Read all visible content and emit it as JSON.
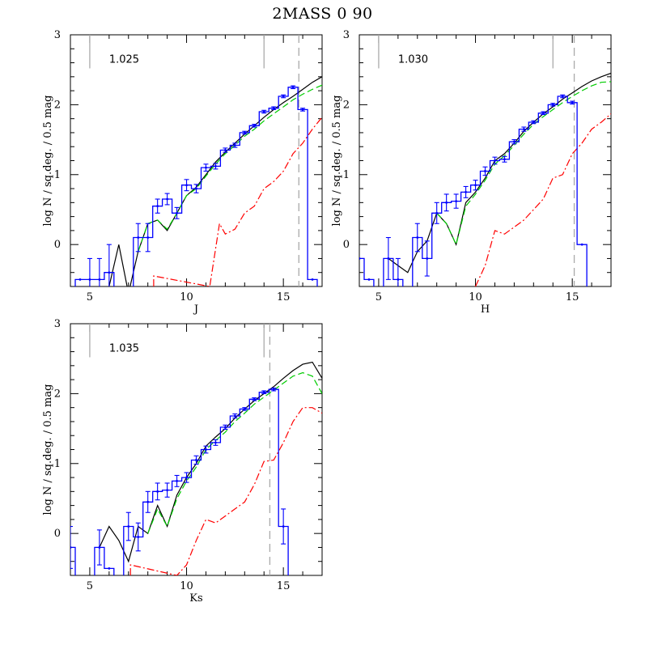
{
  "figure_title": "2MASS 0 90",
  "colors": {
    "observed": "#0000ff",
    "model_total": "#000000",
    "model_green": "#00cc00",
    "model_red": "#ff0000",
    "guides": "#aaaaaa"
  },
  "chart_data": [
    {
      "type": "line",
      "panel": "J",
      "xlabel": "J",
      "ylabel": "log N / sq.deg. / 0.5 mag",
      "annotation": "1.025",
      "xlim": [
        4,
        17
      ],
      "ylim": [
        -0.6,
        3
      ],
      "xticks": [
        5,
        10,
        15
      ],
      "yticks": [
        0,
        1,
        2,
        3
      ],
      "vertical_markers": {
        "solid": [
          5,
          14
        ],
        "dashed": [
          15.8
        ]
      },
      "observed_histogram": {
        "bin_width": 0.5,
        "bins": [
          {
            "x": 4.5,
            "y": -0.5,
            "err": 0
          },
          {
            "x": 5.0,
            "y": -0.5,
            "err": 0.3
          },
          {
            "x": 5.5,
            "y": -0.5,
            "err": 0.3
          },
          {
            "x": 6.0,
            "y": -0.4,
            "err": 0.4
          },
          {
            "x": 7.5,
            "y": 0.1,
            "err": 0.2
          },
          {
            "x": 8.0,
            "y": 0.1,
            "err": 0.2
          },
          {
            "x": 8.5,
            "y": 0.55,
            "err": 0.1
          },
          {
            "x": 9.0,
            "y": 0.65,
            "err": 0.08
          },
          {
            "x": 9.5,
            "y": 0.45,
            "err": 0.08
          },
          {
            "x": 10.0,
            "y": 0.85,
            "err": 0.08
          },
          {
            "x": 10.5,
            "y": 0.8,
            "err": 0.06
          },
          {
            "x": 11.0,
            "y": 1.1,
            "err": 0.05
          },
          {
            "x": 11.5,
            "y": 1.12,
            "err": 0.04
          },
          {
            "x": 12.0,
            "y": 1.35,
            "err": 0.03
          },
          {
            "x": 12.5,
            "y": 1.42,
            "err": 0.03
          },
          {
            "x": 13.0,
            "y": 1.6,
            "err": 0.02
          },
          {
            "x": 13.5,
            "y": 1.7,
            "err": 0.02
          },
          {
            "x": 14.0,
            "y": 1.9,
            "err": 0.02
          },
          {
            "x": 14.5,
            "y": 1.95,
            "err": 0.02
          },
          {
            "x": 15.0,
            "y": 2.12,
            "err": 0.02
          },
          {
            "x": 15.5,
            "y": 2.25,
            "err": 0.02
          },
          {
            "x": 16.0,
            "y": 1.93,
            "err": 0.02
          },
          {
            "x": 16.5,
            "y": -0.5,
            "err": 0
          }
        ]
      },
      "series": [
        {
          "role": "total",
          "x": [
            5.5,
            6.0,
            6.5,
            7.0,
            7.5,
            8.0,
            8.5,
            9.0,
            9.5,
            10.0,
            10.5,
            11.0,
            11.5,
            12.0,
            12.5,
            13.0,
            13.5,
            14.0,
            14.5,
            15.0,
            15.5,
            16.0,
            16.5,
            17.0
          ],
          "y": [
            -0.7,
            -0.6,
            0.0,
            -0.7,
            -0.1,
            0.3,
            0.35,
            0.2,
            0.45,
            0.7,
            0.82,
            1.0,
            1.18,
            1.32,
            1.45,
            1.58,
            1.7,
            1.82,
            1.93,
            2.03,
            2.12,
            2.22,
            2.32,
            2.4
          ]
        },
        {
          "role": "green",
          "x": [
            7.5,
            8.0,
            8.5,
            9.0,
            9.5,
            10.0,
            10.5,
            11.0,
            11.5,
            12.0,
            12.5,
            13.0,
            13.5,
            14.0,
            14.5,
            15.0,
            15.5,
            16.0,
            16.5,
            17.0
          ],
          "y": [
            -0.1,
            0.3,
            0.35,
            0.22,
            0.45,
            0.7,
            0.8,
            0.98,
            1.15,
            1.3,
            1.42,
            1.55,
            1.65,
            1.77,
            1.87,
            1.97,
            2.07,
            2.15,
            2.22,
            2.28
          ]
        },
        {
          "role": "red",
          "x": [
            8.3,
            8.3,
            11.2,
            11.7,
            12.0,
            12.5,
            13.0,
            13.5,
            14.0,
            14.5,
            15.0,
            15.5,
            16.0,
            16.5,
            17.0
          ],
          "y": [
            -0.6,
            -0.45,
            -0.6,
            0.3,
            0.15,
            0.22,
            0.45,
            0.55,
            0.8,
            0.9,
            1.05,
            1.3,
            1.45,
            1.65,
            1.82
          ]
        }
      ]
    },
    {
      "type": "line",
      "panel": "H",
      "xlabel": "H",
      "ylabel": "log N / sq.deg. / 0.5 mag",
      "annotation": "1.030",
      "xlim": [
        4,
        17
      ],
      "ylim": [
        -0.6,
        3
      ],
      "xticks": [
        5,
        10,
        15
      ],
      "yticks": [
        0,
        1,
        2,
        3
      ],
      "vertical_markers": {
        "solid": [
          5,
          14
        ],
        "dashed": [
          15.1
        ]
      },
      "observed_histogram": {
        "bin_width": 0.5,
        "bins": [
          {
            "x": 4.0,
            "y": -0.2,
            "err": 0
          },
          {
            "x": 4.5,
            "y": -0.5,
            "err": 0
          },
          {
            "x": 5.5,
            "y": -0.2,
            "err": 0.3
          },
          {
            "x": 6.0,
            "y": -0.5,
            "err": 0.3
          },
          {
            "x": 7.0,
            "y": 0.1,
            "err": 0.2
          },
          {
            "x": 7.5,
            "y": -0.2,
            "err": 0.25
          },
          {
            "x": 8.0,
            "y": 0.45,
            "err": 0.15
          },
          {
            "x": 8.5,
            "y": 0.6,
            "err": 0.12
          },
          {
            "x": 9.0,
            "y": 0.62,
            "err": 0.1
          },
          {
            "x": 9.5,
            "y": 0.75,
            "err": 0.08
          },
          {
            "x": 10.0,
            "y": 0.85,
            "err": 0.07
          },
          {
            "x": 10.5,
            "y": 1.05,
            "err": 0.06
          },
          {
            "x": 11.0,
            "y": 1.2,
            "err": 0.05
          },
          {
            "x": 11.5,
            "y": 1.22,
            "err": 0.04
          },
          {
            "x": 12.0,
            "y": 1.47,
            "err": 0.03
          },
          {
            "x": 12.5,
            "y": 1.65,
            "err": 0.03
          },
          {
            "x": 13.0,
            "y": 1.75,
            "err": 0.02
          },
          {
            "x": 13.5,
            "y": 1.88,
            "err": 0.02
          },
          {
            "x": 14.0,
            "y": 2.0,
            "err": 0.02
          },
          {
            "x": 14.5,
            "y": 2.12,
            "err": 0.02
          },
          {
            "x": 15.0,
            "y": 2.03,
            "err": 0.02
          },
          {
            "x": 15.5,
            "y": 0.0,
            "err": 0
          }
        ]
      },
      "series": [
        {
          "role": "total",
          "x": [
            5.5,
            6.0,
            6.5,
            7.0,
            7.5,
            8.0,
            8.5,
            9.0,
            9.5,
            10.0,
            10.5,
            11.0,
            11.5,
            12.0,
            12.5,
            13.0,
            13.5,
            14.0,
            14.5,
            15.0,
            15.5,
            16.0,
            16.5,
            17.0
          ],
          "y": [
            -0.2,
            -0.3,
            -0.4,
            -0.1,
            0.05,
            0.45,
            0.3,
            0.0,
            0.6,
            0.75,
            0.95,
            1.2,
            1.3,
            1.45,
            1.62,
            1.75,
            1.87,
            1.97,
            2.08,
            2.17,
            2.26,
            2.34,
            2.4,
            2.45
          ]
        },
        {
          "role": "green",
          "x": [
            8.0,
            8.5,
            9.0,
            9.5,
            10.0,
            10.5,
            11.0,
            11.5,
            12.0,
            12.5,
            13.0,
            13.5,
            14.0,
            14.5,
            15.0,
            15.5,
            16.0,
            16.5,
            17.0
          ],
          "y": [
            0.45,
            0.3,
            0.0,
            0.55,
            0.72,
            0.92,
            1.15,
            1.27,
            1.42,
            1.58,
            1.72,
            1.83,
            1.93,
            2.03,
            2.12,
            2.2,
            2.27,
            2.32,
            2.33
          ]
        },
        {
          "role": "red",
          "x": [
            10.0,
            10.5,
            11.0,
            11.5,
            12.0,
            12.5,
            13.0,
            13.5,
            14.0,
            14.5,
            15.0,
            15.5,
            16.0,
            16.5,
            17.0
          ],
          "y": [
            -0.6,
            -0.3,
            0.2,
            0.15,
            0.25,
            0.35,
            0.5,
            0.65,
            0.95,
            1.0,
            1.3,
            1.45,
            1.65,
            1.75,
            1.87
          ]
        }
      ]
    },
    {
      "type": "line",
      "panel": "Ks",
      "xlabel": "Ks",
      "ylabel": "log N / sq.deg. / 0.5 mag",
      "annotation": "1.035",
      "xlim": [
        4,
        17
      ],
      "ylim": [
        -0.6,
        3
      ],
      "xticks": [
        5,
        10,
        15
      ],
      "yticks": [
        0,
        1,
        2,
        3
      ],
      "vertical_markers": {
        "solid": [
          5,
          14
        ],
        "dashed": [
          14.3
        ]
      },
      "observed_histogram": {
        "bin_width": 0.5,
        "bins": [
          {
            "x": 4.0,
            "y": -0.2,
            "err": 0.3
          },
          {
            "x": 5.5,
            "y": -0.2,
            "err": 0.25
          },
          {
            "x": 6.0,
            "y": -0.5,
            "err": 0
          },
          {
            "x": 7.0,
            "y": 0.1,
            "err": 0.2
          },
          {
            "x": 7.5,
            "y": -0.05,
            "err": 0.2
          },
          {
            "x": 8.0,
            "y": 0.45,
            "err": 0.15
          },
          {
            "x": 8.5,
            "y": 0.6,
            "err": 0.12
          },
          {
            "x": 9.0,
            "y": 0.62,
            "err": 0.1
          },
          {
            "x": 9.5,
            "y": 0.75,
            "err": 0.08
          },
          {
            "x": 10.0,
            "y": 0.8,
            "err": 0.07
          },
          {
            "x": 10.5,
            "y": 1.05,
            "err": 0.06
          },
          {
            "x": 11.0,
            "y": 1.2,
            "err": 0.05
          },
          {
            "x": 11.5,
            "y": 1.3,
            "err": 0.04
          },
          {
            "x": 12.0,
            "y": 1.52,
            "err": 0.03
          },
          {
            "x": 12.5,
            "y": 1.68,
            "err": 0.03
          },
          {
            "x": 13.0,
            "y": 1.78,
            "err": 0.02
          },
          {
            "x": 13.5,
            "y": 1.92,
            "err": 0.02
          },
          {
            "x": 14.0,
            "y": 2.02,
            "err": 0.02
          },
          {
            "x": 14.5,
            "y": 2.06,
            "err": 0.02
          },
          {
            "x": 15.0,
            "y": 0.1,
            "err": 0.25
          }
        ]
      },
      "series": [
        {
          "role": "total",
          "x": [
            5.5,
            6.0,
            6.5,
            7.0,
            7.5,
            8.0,
            8.5,
            9.0,
            9.5,
            10.0,
            10.5,
            11.0,
            11.5,
            12.0,
            12.5,
            13.0,
            13.5,
            14.0,
            14.5,
            15.0,
            15.5,
            16.0,
            16.5,
            17.0
          ],
          "y": [
            -0.2,
            0.1,
            -0.1,
            -0.4,
            0.1,
            0.0,
            0.4,
            0.1,
            0.55,
            0.8,
            1.0,
            1.25,
            1.38,
            1.5,
            1.65,
            1.78,
            1.9,
            2.0,
            2.1,
            2.22,
            2.33,
            2.42,
            2.45,
            2.22
          ]
        },
        {
          "role": "green",
          "x": [
            8.0,
            8.5,
            9.0,
            9.5,
            10.0,
            10.5,
            11.0,
            11.5,
            12.0,
            12.5,
            13.0,
            13.5,
            14.0,
            14.5,
            15.0,
            15.5,
            16.0,
            16.5,
            17.0
          ],
          "y": [
            0.0,
            0.35,
            0.1,
            0.5,
            0.75,
            0.95,
            1.2,
            1.33,
            1.45,
            1.6,
            1.72,
            1.85,
            1.95,
            2.05,
            2.15,
            2.25,
            2.3,
            2.25,
            2.0
          ]
        },
        {
          "role": "red",
          "x": [
            7.1,
            7.1,
            9.5,
            10.0,
            10.5,
            11.0,
            11.5,
            12.0,
            12.5,
            13.0,
            13.5,
            14.0,
            14.5,
            15.0,
            15.5,
            16.0,
            16.5,
            17.0
          ],
          "y": [
            -0.6,
            -0.45,
            -0.6,
            -0.45,
            -0.1,
            0.2,
            0.15,
            0.25,
            0.35,
            0.45,
            0.7,
            1.03,
            1.05,
            1.3,
            1.6,
            1.8,
            1.8,
            1.72
          ]
        }
      ]
    }
  ]
}
